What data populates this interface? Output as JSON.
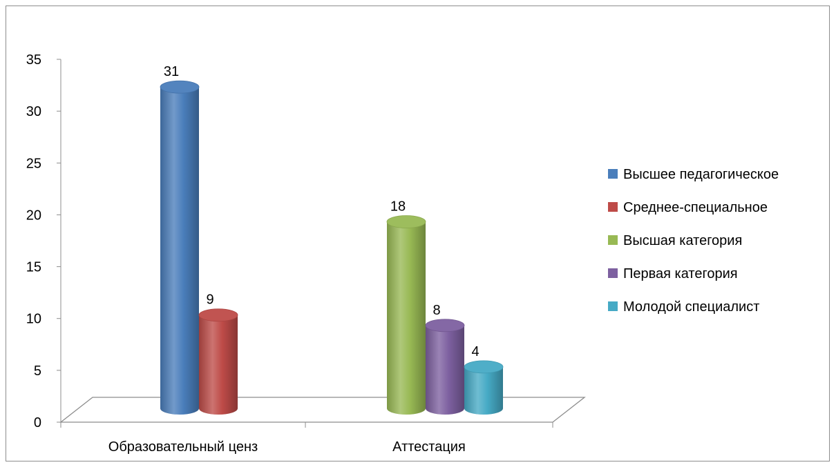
{
  "chart_data": {
    "type": "bar",
    "variant": "3d-cylinder",
    "title": "",
    "xlabel": "",
    "ylabel": "",
    "ylim": [
      0,
      35
    ],
    "ytick_step": 5,
    "yticks": [
      "0",
      "5",
      "10",
      "15",
      "20",
      "25",
      "30",
      "35"
    ],
    "grid": false,
    "legend_position": "right",
    "categories": [
      "Образовательный ценз",
      "Аттестация"
    ],
    "series": [
      {
        "name": "Высшее педагогическое",
        "color": "#4a7ebb",
        "category": "Образовательный ценз",
        "value": 31,
        "label": "31"
      },
      {
        "name": "Среднее-специальное",
        "color": "#be4b48",
        "category": "Образовательный ценз",
        "value": 9,
        "label": "9"
      },
      {
        "name": "Высшая категория",
        "color": "#98b954",
        "category": "Аттестация",
        "value": 18,
        "label": "18"
      },
      {
        "name": "Первая категория",
        "color": "#7d60a0",
        "category": "Аттестация",
        "value": 8,
        "label": "8"
      },
      {
        "name": "Молодой специалист",
        "color": "#46aac5",
        "category": "Аттестация",
        "value": 4,
        "label": "4"
      }
    ]
  }
}
